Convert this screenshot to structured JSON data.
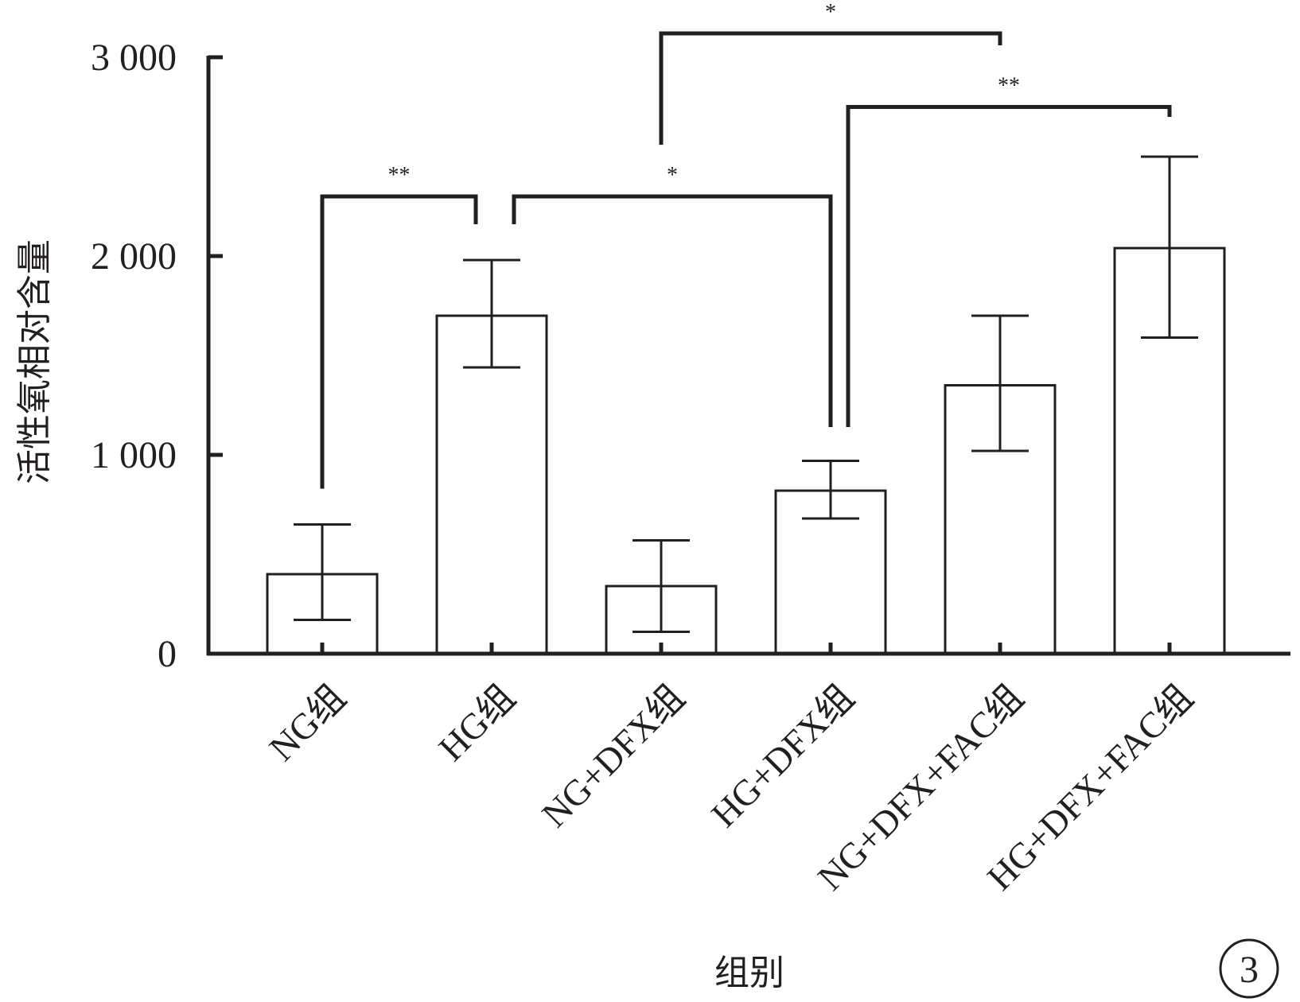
{
  "chart_data": {
    "type": "bar",
    "title": "",
    "xlabel": "组别",
    "ylabel": "活性氧相对含量",
    "ylim": [
      0,
      3000
    ],
    "yticks": [
      {
        "value": 0,
        "label": "0"
      },
      {
        "value": 1000,
        "label": "1 000"
      },
      {
        "value": 2000,
        "label": "2 000"
      },
      {
        "value": 3000,
        "label": "3 000"
      }
    ],
    "categories": [
      "NG组",
      "HG组",
      "NG+DFX组",
      "HG+DFX组",
      "NG+DFX+FAC组",
      "HG+DFX+FAC组"
    ],
    "values": [
      400,
      1700,
      340,
      820,
      1350,
      2040
    ],
    "error_bars": [
      {
        "low": 170,
        "high": 650
      },
      {
        "low": 1440,
        "high": 1980
      },
      {
        "low": 110,
        "high": 570
      },
      {
        "low": 680,
        "high": 970
      },
      {
        "low": 1020,
        "high": 1700
      },
      {
        "low": 1590,
        "high": 2500
      }
    ],
    "significance": [
      {
        "from": 0,
        "to": 1,
        "label": "**"
      },
      {
        "from": 1,
        "to": 3,
        "label": "*"
      },
      {
        "from": 2,
        "to": 4,
        "label": "*"
      },
      {
        "from": 3,
        "to": 5,
        "label": "**"
      }
    ],
    "panel_label": "3",
    "grid": false,
    "legend": "none"
  }
}
